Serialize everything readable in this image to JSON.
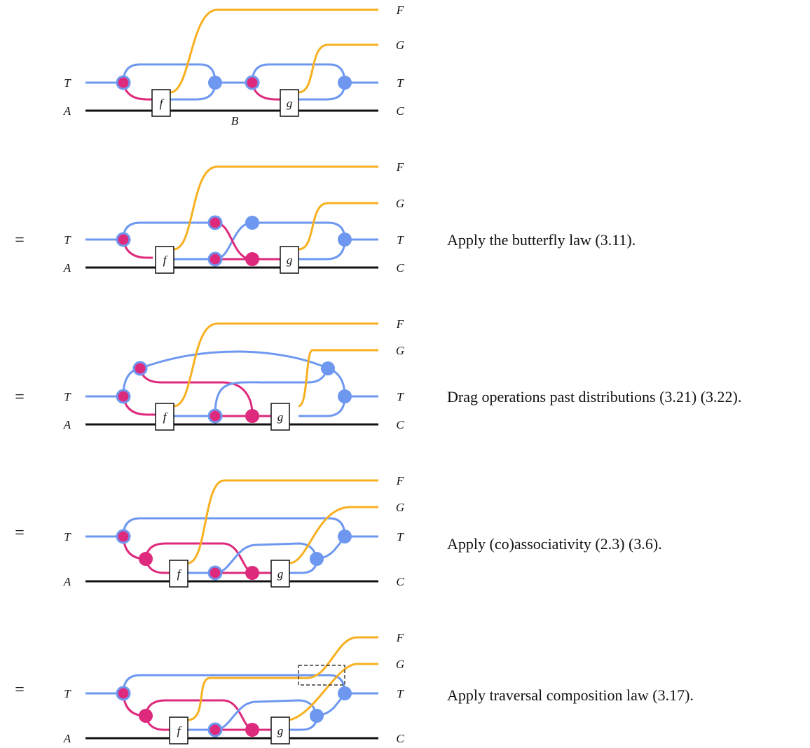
{
  "colors": {
    "blue": "#6E98F0",
    "pink": "#DE2A7D",
    "orange": "#F7B020",
    "black": "#111111"
  },
  "equals_sign": "=",
  "box_labels": {
    "f": "f",
    "g": "g"
  },
  "wire_labels": {
    "T_in": "T",
    "A_in": "A",
    "F_out": "F",
    "G_out": "G",
    "T_out": "T",
    "C_out": "C",
    "B_mid": "B"
  },
  "steps": [
    {
      "caption": ""
    },
    {
      "caption": "Apply the butterfly law (3.11)."
    },
    {
      "caption": "Drag operations past distributions (3.21) (3.22)."
    },
    {
      "caption": "Apply (co)associativity (2.3) (3.6)."
    },
    {
      "caption": "Apply traversal composition law (3.17)."
    }
  ]
}
